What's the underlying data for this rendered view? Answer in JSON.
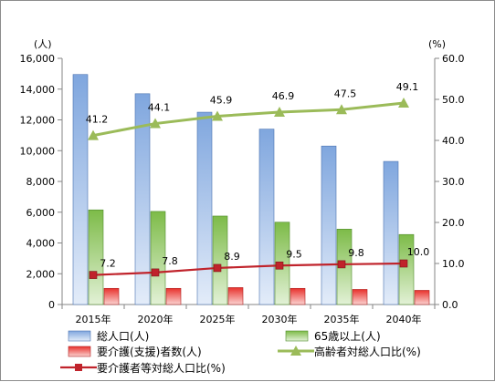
{
  "chart_data": {
    "type": "bar",
    "categories": [
      "2015年",
      "2020年",
      "2025年",
      "2030年",
      "2035年",
      "2040年"
    ],
    "series": [
      {
        "name": "総人口(人)",
        "kind": "bar",
        "axis": "left",
        "color": "#8fb4e3",
        "values": [
          14950,
          13700,
          12500,
          11400,
          10300,
          9300
        ]
      },
      {
        "name": "65歳以上(人)",
        "kind": "bar",
        "axis": "left",
        "color": "#8cc65a",
        "values": [
          6150,
          6050,
          5750,
          5350,
          4900,
          4550
        ]
      },
      {
        "name": "要介護(支援)者数(人)",
        "kind": "bar",
        "axis": "left",
        "color": "#e8322d",
        "values": [
          1050,
          1050,
          1100,
          1050,
          980,
          920
        ]
      },
      {
        "name": "高齢者対総人口比(%)",
        "kind": "line",
        "axis": "right",
        "color": "#9bbb59",
        "marker": "triangle",
        "values": [
          41.2,
          44.1,
          45.9,
          46.9,
          47.5,
          49.1
        ],
        "labels": [
          "41.2",
          "44.1",
          "45.9",
          "46.9",
          "47.5",
          "49.1"
        ]
      },
      {
        "name": "要介護者等対総人口比(%)",
        "kind": "line",
        "axis": "right",
        "color": "#c0232b",
        "marker": "square",
        "values": [
          7.2,
          7.8,
          8.9,
          9.5,
          9.8,
          10.0
        ],
        "labels": [
          "7.2",
          "7.8",
          "8.9",
          "9.5",
          "9.8",
          "10.0"
        ]
      }
    ],
    "left_axis": {
      "unit": "(人)",
      "ylim": [
        0,
        16000
      ],
      "ticks": [
        "0",
        "2,000",
        "4,000",
        "6,000",
        "8,000",
        "10,000",
        "12,000",
        "14,000",
        "16,000"
      ]
    },
    "right_axis": {
      "unit": "(%)",
      "ylim": [
        0,
        60
      ],
      "ticks": [
        "0.0",
        "10.0",
        "20.0",
        "30.0",
        "40.0",
        "50.0",
        "60.0"
      ]
    },
    "grid": false,
    "legend": "bottom"
  }
}
